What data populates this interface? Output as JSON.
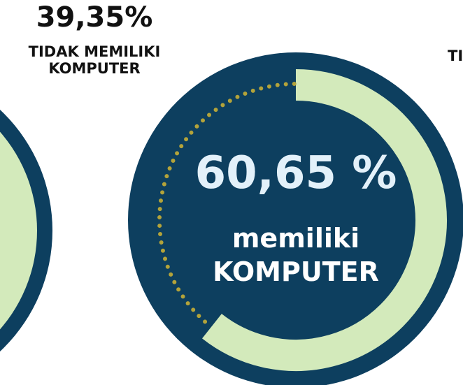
{
  "chart_data": {
    "type": "donut",
    "categories": [
      "memiliki KOMPUTER",
      "TIDAK MEMILIKI KOMPUTER"
    ],
    "values": [
      60.65,
      39.35
    ],
    "value_labels": [
      "60,65 %",
      "39,35%"
    ],
    "colors": [
      "#d3eabb",
      "#b3a33a"
    ],
    "cropped_label": "TI"
  }
}
